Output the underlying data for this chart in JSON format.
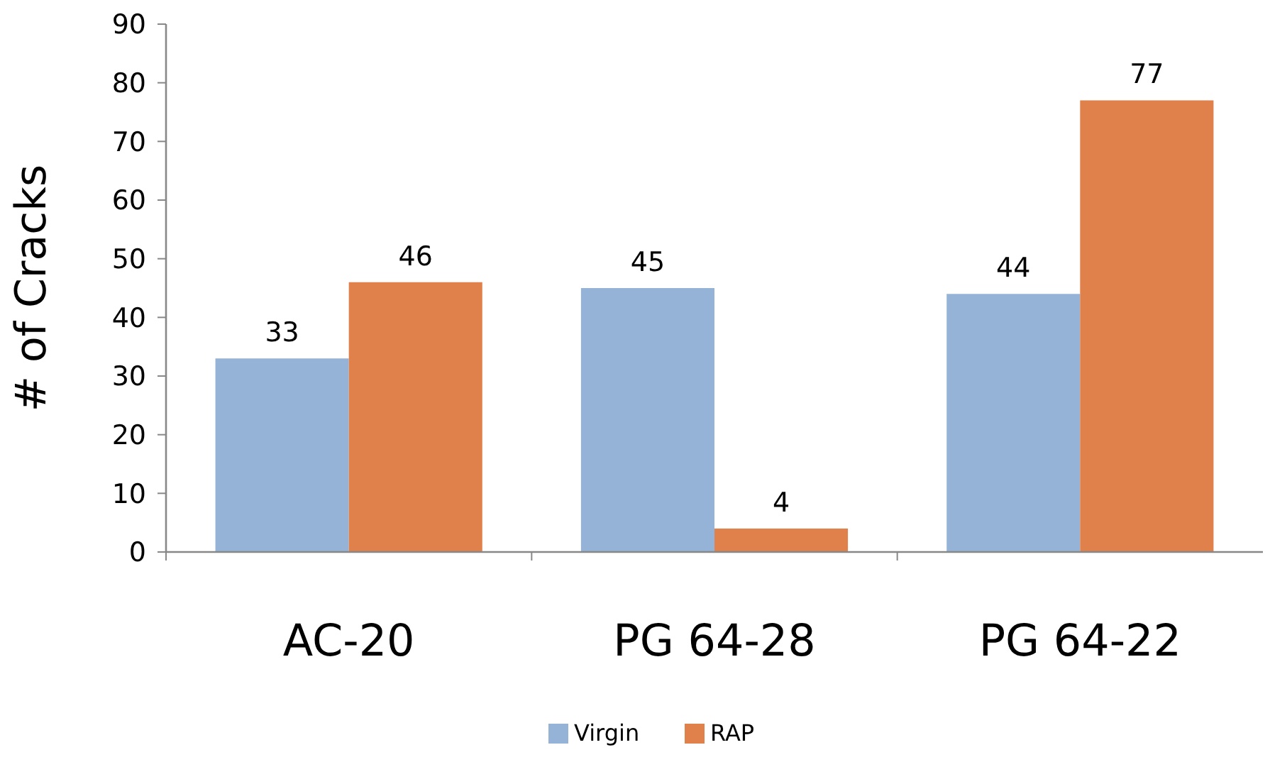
{
  "chart_data": {
    "type": "bar",
    "ylabel": "# of Cracks",
    "categories": [
      "AC-20",
      "PG 64-28",
      "PG 64-22"
    ],
    "series": [
      {
        "name": "Virgin",
        "color": "#95b3d7",
        "values": [
          33,
          45,
          44
        ]
      },
      {
        "name": "RAP",
        "color": "#e0804a",
        "values": [
          46,
          4,
          77
        ]
      }
    ],
    "ylim": [
      0,
      90
    ],
    "yticks": [
      0,
      10,
      20,
      30,
      40,
      50,
      60,
      70,
      80,
      90
    ],
    "data_labels": true,
    "legend": "bottom",
    "grid": false
  }
}
